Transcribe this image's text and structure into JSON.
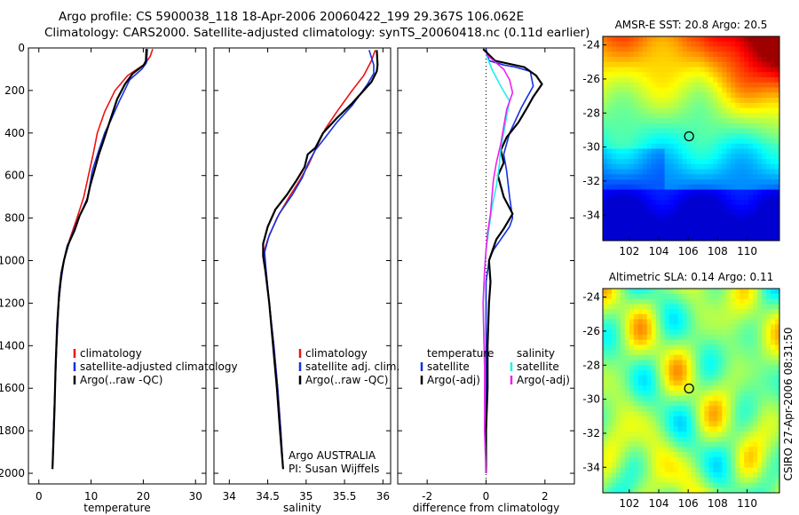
{
  "header": {
    "line1": "Argo profile: CS 5900038_118 18-Apr-2006 20060422_199 29.367S 106.062E",
    "line2": "Climatology: CARS2000. Satellite-adjusted climatology: synTS_20060418.nc (0.11d earlier)"
  },
  "side_stamp": "CSIRO 27-Apr-2006 08:31:50",
  "credits": {
    "line1": "Argo AUSTRALIA",
    "line2": "PI: Susan Wijffels"
  },
  "colors": {
    "clim": "#e11",
    "sat": "#1530e0",
    "argo": "#000",
    "sal_sat": "#2ee",
    "sal_argo": "#e2e"
  },
  "chart_data": [
    {
      "type": "line",
      "xlabel": "temperature",
      "xlim": [
        -2,
        32
      ],
      "xticks": [
        0,
        10,
        20,
        30
      ],
      "ylim": [
        0,
        2050
      ],
      "yticks": [
        0,
        200,
        400,
        600,
        800,
        1000,
        1200,
        1400,
        1600,
        1800,
        2000
      ],
      "legend": [
        "climatology",
        "satellite-adjusted climatology",
        "Argo(..raw -QC)"
      ],
      "series": [
        {
          "name": "climatology",
          "color": "clim",
          "points": [
            [
              21.8,
              5
            ],
            [
              21.3,
              40
            ],
            [
              20.3,
              75
            ],
            [
              17,
              130
            ],
            [
              14.6,
              200
            ],
            [
              12.6,
              300
            ],
            [
              11.2,
              400
            ],
            [
              10.4,
              500
            ],
            [
              9.5,
              600
            ],
            [
              8.6,
              700
            ],
            [
              7.3,
              800
            ],
            [
              5.9,
              900
            ],
            [
              4.8,
              1000
            ],
            [
              4.2,
              1100
            ],
            [
              3.8,
              1200
            ],
            [
              3.4,
              1400
            ],
            [
              3.1,
              1600
            ],
            [
              2.8,
              1800
            ],
            [
              2.7,
              1950
            ]
          ]
        },
        {
          "name": "satellite-adjusted climatology",
          "color": "sat",
          "points": [
            [
              20.8,
              5
            ],
            [
              20.6,
              70
            ],
            [
              19.7,
              100
            ],
            [
              17.4,
              150
            ],
            [
              15.4,
              250
            ],
            [
              13.8,
              340
            ],
            [
              12.6,
              400
            ],
            [
              11.5,
              480
            ],
            [
              10.2,
              580
            ],
            [
              9.4,
              700
            ],
            [
              7.6,
              800
            ],
            [
              6,
              900
            ],
            [
              4.8,
              1000
            ],
            [
              4.2,
              1100
            ],
            [
              3.8,
              1200
            ],
            [
              3.4,
              1400
            ],
            [
              3.1,
              1600
            ],
            [
              2.8,
              1800
            ],
            [
              2.6,
              1980
            ]
          ]
        },
        {
          "name": "Argo(..raw -QC)",
          "color": "argo",
          "points": [
            [
              20.6,
              5
            ],
            [
              20.5,
              60
            ],
            [
              20.1,
              80
            ],
            [
              18,
              120
            ],
            [
              16.5,
              170
            ],
            [
              15,
              240
            ],
            [
              13.8,
              330
            ],
            [
              13,
              390
            ],
            [
              12.2,
              450
            ],
            [
              11.5,
              500
            ],
            [
              10.6,
              580
            ],
            [
              9.8,
              650
            ],
            [
              9.2,
              720
            ],
            [
              7.8,
              790
            ],
            [
              6.8,
              860
            ],
            [
              5.5,
              930
            ],
            [
              4.8,
              1000
            ],
            [
              4.3,
              1060
            ],
            [
              3.9,
              1150
            ],
            [
              3.5,
              1300
            ],
            [
              3.2,
              1500
            ],
            [
              3,
              1700
            ],
            [
              2.8,
              1850
            ],
            [
              2.6,
              1980
            ]
          ]
        }
      ]
    },
    {
      "type": "line",
      "xlabel": "salinity",
      "xlim": [
        33.8,
        36.1
      ],
      "xticks": [
        34,
        34.5,
        35,
        35.5,
        36
      ],
      "ylim": [
        0,
        2050
      ],
      "legend": [
        "climatology",
        "satellite adj. clim.",
        "Argo(..raw -QC)"
      ],
      "series": [
        {
          "name": "climatology",
          "color": "clim",
          "points": [
            [
              35.9,
              10
            ],
            [
              35.85,
              60
            ],
            [
              35.75,
              130
            ],
            [
              35.6,
              200
            ],
            [
              35.4,
              300
            ],
            [
              35.25,
              380
            ],
            [
              35.13,
              470
            ],
            [
              35.03,
              550
            ],
            [
              34.92,
              620
            ],
            [
              34.78,
              700
            ],
            [
              34.62,
              800
            ],
            [
              34.5,
              900
            ],
            [
              34.45,
              960
            ],
            [
              34.48,
              1050
            ],
            [
              34.52,
              1200
            ],
            [
              34.58,
              1400
            ],
            [
              34.63,
              1600
            ],
            [
              34.67,
              1800
            ],
            [
              34.7,
              1980
            ]
          ]
        },
        {
          "name": "satellite adj. clim.",
          "color": "sat",
          "points": [
            [
              35.82,
              10
            ],
            [
              35.88,
              80
            ],
            [
              35.88,
              120
            ],
            [
              35.8,
              170
            ],
            [
              35.6,
              270
            ],
            [
              35.4,
              350
            ],
            [
              35.25,
              420
            ],
            [
              35.12,
              480
            ],
            [
              35.03,
              540
            ],
            [
              34.95,
              610
            ],
            [
              34.82,
              690
            ],
            [
              34.65,
              780
            ],
            [
              34.52,
              880
            ],
            [
              34.46,
              960
            ],
            [
              34.48,
              1050
            ],
            [
              34.52,
              1200
            ],
            [
              34.58,
              1400
            ],
            [
              34.63,
              1600
            ],
            [
              34.67,
              1800
            ],
            [
              34.7,
              1980
            ]
          ]
        },
        {
          "name": "Argo(..raw -QC)",
          "color": "argo",
          "points": [
            [
              35.92,
              10
            ],
            [
              35.93,
              80
            ],
            [
              35.92,
              110
            ],
            [
              35.85,
              160
            ],
            [
              35.6,
              260
            ],
            [
              35.4,
              330
            ],
            [
              35.22,
              400
            ],
            [
              35.12,
              470
            ],
            [
              35.02,
              500
            ],
            [
              34.98,
              560
            ],
            [
              34.88,
              620
            ],
            [
              34.75,
              690
            ],
            [
              34.6,
              760
            ],
            [
              34.5,
              840
            ],
            [
              34.44,
              920
            ],
            [
              34.44,
              980
            ],
            [
              34.47,
              1050
            ],
            [
              34.52,
              1200
            ],
            [
              34.57,
              1400
            ],
            [
              34.62,
              1600
            ],
            [
              34.66,
              1800
            ],
            [
              34.7,
              1980
            ]
          ]
        }
      ]
    },
    {
      "type": "line",
      "xlabel": "difference from climatology",
      "xlim": [
        -3,
        3
      ],
      "xticks": [
        -2,
        0,
        2
      ],
      "ylim": [
        0,
        2050
      ],
      "legend_groups": [
        {
          "title": "temperature",
          "items": [
            "satellite",
            "Argo(-adj)"
          ]
        },
        {
          "title": "salinity",
          "items": [
            "satellite",
            "Argo(-adj)"
          ]
        }
      ],
      "series": [
        {
          "name": "temperature satellite",
          "color": "sat",
          "points": [
            [
              0,
              5
            ],
            [
              0.1,
              60
            ],
            [
              0.6,
              80
            ],
            [
              1,
              90
            ],
            [
              1.5,
              110
            ],
            [
              1.6,
              180
            ],
            [
              1.4,
              230
            ],
            [
              1.2,
              280
            ],
            [
              1,
              340
            ],
            [
              0.8,
              400
            ],
            [
              0.6,
              500
            ],
            [
              0.7,
              580
            ],
            [
              0.8,
              700
            ],
            [
              0.9,
              800
            ],
            [
              0.8,
              840
            ],
            [
              0.5,
              900
            ],
            [
              0.25,
              950
            ],
            [
              0.1,
              1000
            ],
            [
              0,
              1100
            ],
            [
              0,
              1300
            ],
            [
              0,
              1500
            ],
            [
              0,
              1700
            ],
            [
              0,
              1900
            ],
            [
              0,
              2000
            ]
          ]
        },
        {
          "name": "temperature Argo(-adj)",
          "color": "argo",
          "points": [
            [
              -0.1,
              5
            ],
            [
              0.3,
              60
            ],
            [
              1.3,
              90
            ],
            [
              1.7,
              130
            ],
            [
              1.9,
              170
            ],
            [
              1.6,
              230
            ],
            [
              1.4,
              280
            ],
            [
              1.1,
              350
            ],
            [
              0.7,
              420
            ],
            [
              0.5,
              480
            ],
            [
              0.6,
              540
            ],
            [
              0.4,
              600
            ],
            [
              0.6,
              700
            ],
            [
              0.9,
              780
            ],
            [
              0.6,
              850
            ],
            [
              0.35,
              900
            ],
            [
              0.2,
              960
            ],
            [
              0.1,
              1000
            ],
            [
              0.15,
              1100
            ],
            [
              0.1,
              1200
            ],
            [
              0.05,
              1400
            ],
            [
              0.05,
              1600
            ],
            [
              0,
              1800
            ],
            [
              0,
              2000
            ]
          ]
        },
        {
          "name": "salinity satellite",
          "color": "sal_sat",
          "points": [
            [
              0,
              30
            ],
            [
              0.2,
              100
            ],
            [
              0.5,
              180
            ],
            [
              0.8,
              250
            ],
            [
              0.7,
              320
            ],
            [
              0.6,
              400
            ],
            [
              0.5,
              470
            ],
            [
              0.45,
              550
            ],
            [
              0.35,
              650
            ],
            [
              0.2,
              750
            ],
            [
              0.1,
              850
            ],
            [
              0,
              950
            ],
            [
              -0.05,
              1050
            ],
            [
              -0.1,
              1200
            ],
            [
              -0.05,
              1500
            ],
            [
              -0.05,
              1800
            ],
            [
              0,
              2000
            ]
          ]
        },
        {
          "name": "salinity Argo(-adj)",
          "color": "sal_argo",
          "points": [
            [
              0,
              30
            ],
            [
              0.6,
              100
            ],
            [
              0.8,
              150
            ],
            [
              0.9,
              210
            ],
            [
              0.7,
              290
            ],
            [
              0.6,
              370
            ],
            [
              0.5,
              450
            ],
            [
              0.35,
              540
            ],
            [
              0.25,
              620
            ],
            [
              0.2,
              700
            ],
            [
              0.15,
              780
            ],
            [
              0.05,
              870
            ],
            [
              0,
              950
            ],
            [
              -0.05,
              1050
            ],
            [
              -0.1,
              1200
            ],
            [
              -0.05,
              1500
            ],
            [
              -0.05,
              1800
            ],
            [
              0,
              2000
            ]
          ]
        }
      ]
    },
    {
      "type": "heatmap",
      "title": "AMSR-E SST: 20.8 Argo: 20.5",
      "xlim": [
        100.2,
        112.2
      ],
      "ylim": [
        -35.5,
        -23.5
      ],
      "xticks": [
        102,
        104,
        106,
        108,
        110
      ],
      "yticks": [
        -24,
        -26,
        -28,
        -30,
        -32,
        -34
      ],
      "marker": [
        106.06,
        -29.37
      ],
      "colormap": "jet"
    },
    {
      "type": "heatmap",
      "title": "Altimetric SLA: 0.14 Argo: 0.11",
      "xlim": [
        100.2,
        112.2
      ],
      "ylim": [
        -35.5,
        -23.5
      ],
      "xticks": [
        102,
        104,
        106,
        108,
        110
      ],
      "yticks": [
        -24,
        -26,
        -28,
        -30,
        -32,
        -34
      ],
      "marker": [
        106.06,
        -29.37
      ],
      "colormap": "jet"
    }
  ]
}
